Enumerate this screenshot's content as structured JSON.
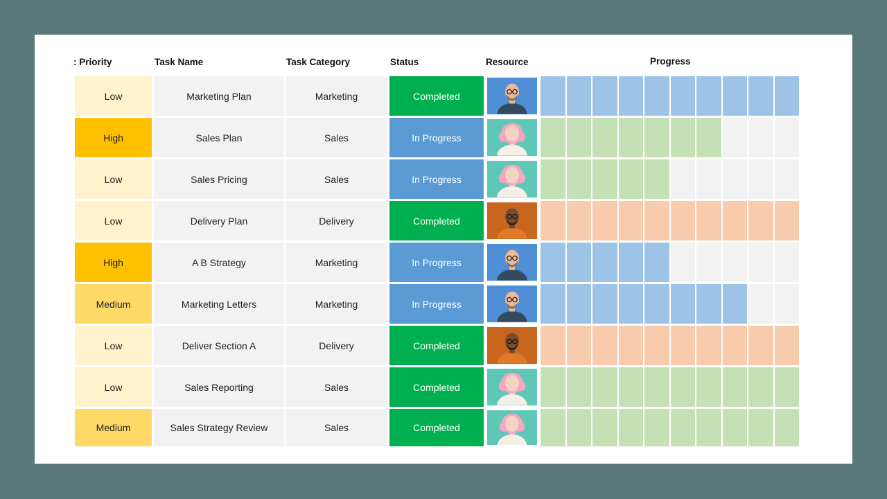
{
  "headers": {
    "priority": ": Priority",
    "task_name": "Task Name",
    "task_category": "Task Category",
    "status": "Status",
    "resource": "Resource",
    "progress": "Progress"
  },
  "colors": {
    "priority": {
      "Low": "#fff2cc",
      "High": "#ffc000",
      "Medium": "#ffd966"
    },
    "status": {
      "Completed": "#00b050",
      "In Progress": "#5b9bd5"
    },
    "progress": {
      "blue": "#9dc3e6",
      "green": "#c5e0b4",
      "orange": "#f8cbad",
      "empty": "#f2f2f2"
    },
    "cell_bg": "#f2f2f2"
  },
  "resources": {
    "man_blue": {
      "icon": "man-with-glasses-avatar-icon",
      "bg": "#4f8fd6"
    },
    "woman_pink": {
      "icon": "woman-pink-hair-avatar-icon",
      "bg": "#5fc7b8"
    },
    "man_orange": {
      "icon": "man-with-beard-avatar-icon",
      "bg": "#c8661e"
    }
  },
  "progress_total_segments": 10,
  "rows": [
    {
      "priority": "Low",
      "task_name": "Marketing Plan",
      "category": "Marketing",
      "status": "Completed",
      "resource": "man_blue",
      "progress_color": "blue",
      "progress_filled": 10
    },
    {
      "priority": "High",
      "task_name": "Sales Plan",
      "category": "Sales",
      "status": "In Progress",
      "resource": "woman_pink",
      "progress_color": "green",
      "progress_filled": 7
    },
    {
      "priority": "Low",
      "task_name": "Sales Pricing",
      "category": "Sales",
      "status": "In Progress",
      "resource": "woman_pink",
      "progress_color": "green",
      "progress_filled": 5
    },
    {
      "priority": "Low",
      "task_name": "Delivery Plan",
      "category": "Delivery",
      "status": "Completed",
      "resource": "man_orange",
      "progress_color": "orange",
      "progress_filled": 10
    },
    {
      "priority": "High",
      "task_name": "A B Strategy",
      "category": "Marketing",
      "status": "In Progress",
      "resource": "man_blue",
      "progress_color": "blue",
      "progress_filled": 5
    },
    {
      "priority": "Medium",
      "task_name": "Marketing Letters",
      "category": "Marketing",
      "status": "In Progress",
      "resource": "man_blue",
      "progress_color": "blue",
      "progress_filled": 8
    },
    {
      "priority": "Low",
      "task_name": "Deliver Section A",
      "category": "Delivery",
      "status": "Completed",
      "resource": "man_orange",
      "progress_color": "orange",
      "progress_filled": 10
    },
    {
      "priority": "Low",
      "task_name": "Sales Reporting",
      "category": "Sales",
      "status": "Completed",
      "resource": "woman_pink",
      "progress_color": "green",
      "progress_filled": 10
    },
    {
      "priority": "Medium",
      "task_name": "Sales Strategy Review",
      "category": "Sales",
      "status": "Completed",
      "resource": "woman_pink",
      "progress_color": "green",
      "progress_filled": 10
    }
  ]
}
